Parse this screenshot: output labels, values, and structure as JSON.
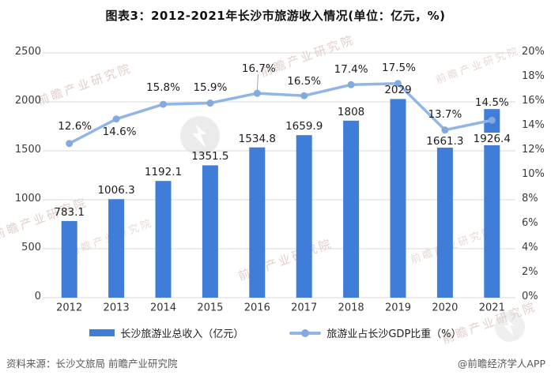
{
  "title": "图表3：2012-2021年长沙市旅游收入情况(单位：亿元，%)",
  "watermark": {
    "text": "前瞻产业研究院"
  },
  "colors": {
    "bar": "#3F7DD8",
    "line": "#92B5E7",
    "marker": "#84A9DF",
    "grid": "#D9D9D9",
    "axis_text": "#3a3a3a",
    "label_text": "#1c1c1c",
    "source_text": "#595959",
    "leader_line": "#A6A6A6",
    "watermark_logo": "#D8D8D8"
  },
  "legend": [
    {
      "label": "长沙旅游业总收入（亿元）",
      "type": "bar"
    },
    {
      "label": "旅游业占长沙GDP比重（%）",
      "type": "line"
    }
  ],
  "source": {
    "left": "资料来源：长沙文旅局 前瞻产业研究院",
    "right": "@前瞻经济学人APP"
  },
  "chart_data": {
    "type": "bar+line combo",
    "title": "图表3：2012-2021年长沙市旅游收入情况(单位：亿元，%)",
    "categories": [
      "2012",
      "2013",
      "2014",
      "2015",
      "2016",
      "2017",
      "2018",
      "2019",
      "2020",
      "2021"
    ],
    "series": [
      {
        "name": "长沙旅游业总收入（亿元）",
        "type": "bar",
        "axis": "left",
        "values": [
          783.1,
          1006.3,
          1192.1,
          1351.5,
          1534.8,
          1659.9,
          1808,
          2029,
          1661.3,
          1926.4
        ]
      },
      {
        "name": "旅游业占长沙GDP比重（%）",
        "type": "line",
        "axis": "right",
        "values": [
          12.6,
          14.6,
          15.8,
          15.9,
          16.7,
          16.5,
          17.4,
          17.5,
          13.7,
          14.5
        ]
      }
    ],
    "left_axis": {
      "min": 0,
      "max": 2500,
      "step": 500,
      "ticks": [
        "2500",
        "2000",
        "1500",
        "1000",
        "500",
        "0"
      ]
    },
    "right_axis": {
      "min": 0,
      "max": 20,
      "step": 2,
      "ticks": [
        "20%",
        "18%",
        "16%",
        "14%",
        "12%",
        "10%",
        "8%",
        "6%",
        "4%",
        "2%",
        "0%"
      ]
    },
    "grid": "horizontal gridlines at left-axis steps of 500",
    "legend_position": "bottom",
    "data_labels": "shown for all bars and all line points; 2016 line label has a callout leader line; 2020 and 2021 bar labels sit on the bars with white backgrounds"
  }
}
